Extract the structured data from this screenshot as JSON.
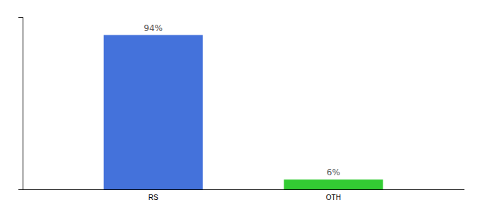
{
  "chart_data": {
    "type": "bar",
    "categories": [
      "RS",
      "OTH"
    ],
    "values": [
      94,
      6
    ],
    "value_labels": [
      "94%",
      "6%"
    ],
    "data_labels": true,
    "colors": [
      "#4472db",
      "#33cc33"
    ],
    "ylim": [
      0,
      105
    ],
    "yticks": [],
    "grid": false,
    "tick_labels": "x"
  }
}
